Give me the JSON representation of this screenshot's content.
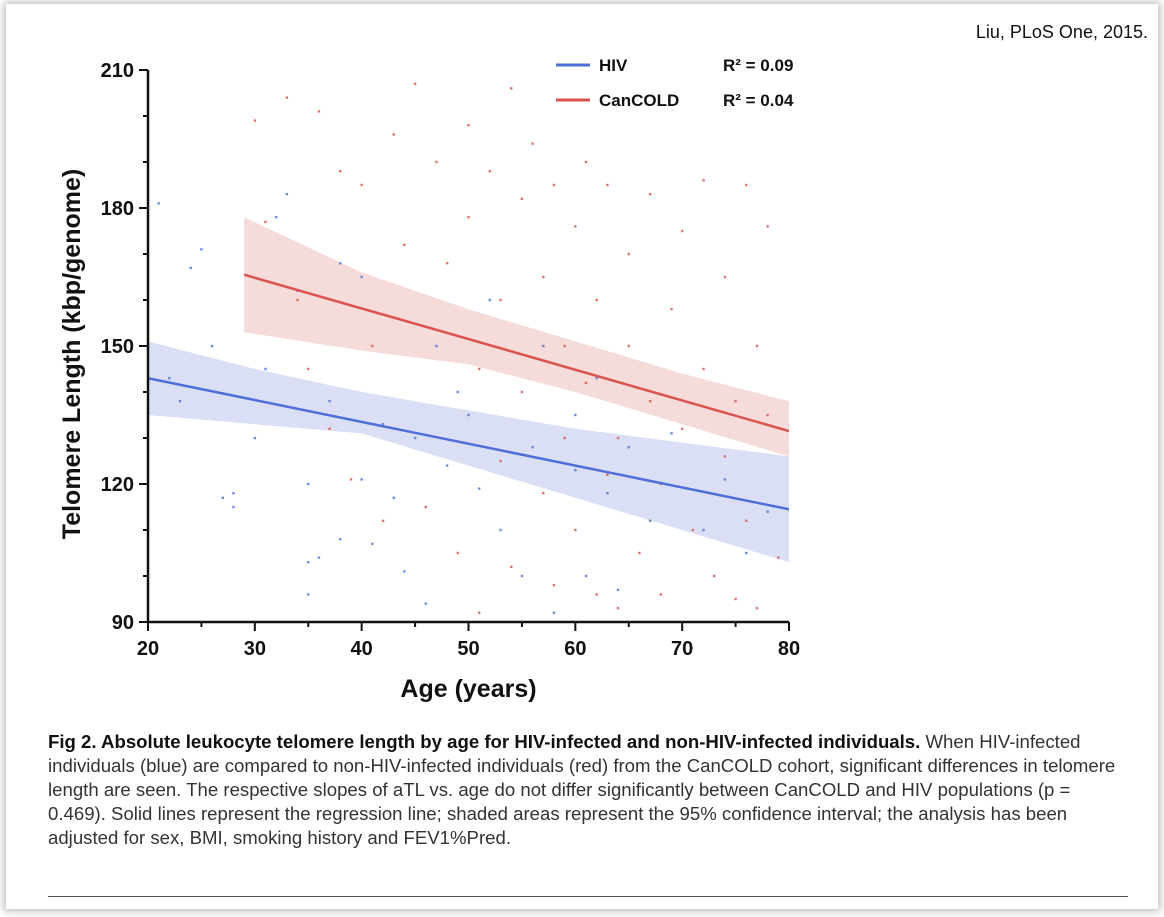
{
  "citation": "Liu, PLoS One, 2015.",
  "chart_data": {
    "type": "scatter",
    "xlabel": "Age (years)",
    "ylabel": "Telomere Length (kbp/genome)",
    "xlim": [
      20,
      80
    ],
    "ylim": [
      90,
      210
    ],
    "xticks": [
      20,
      30,
      40,
      50,
      60,
      70,
      80
    ],
    "yticks": [
      90,
      120,
      150,
      180,
      210
    ],
    "grid": false,
    "legend_position": "top-right",
    "series": [
      {
        "name": "HIV",
        "r2_label": "R² = 0.09",
        "color": "#4f6fd8",
        "band_color": "#cfd4f3",
        "regression": {
          "x": [
            20,
            80
          ],
          "y": [
            143,
            114.5
          ]
        },
        "ci_upper": {
          "x": [
            20,
            30,
            40,
            50,
            60,
            70,
            80
          ],
          "y": [
            151,
            145,
            140,
            136,
            132,
            129,
            126
          ]
        },
        "ci_lower": {
          "x": [
            20,
            30,
            40,
            50,
            60,
            70,
            80
          ],
          "y": [
            135,
            133,
            131,
            124,
            117,
            110,
            103
          ]
        },
        "points": [
          [
            21,
            181
          ],
          [
            22,
            143
          ],
          [
            23,
            138
          ],
          [
            24,
            167
          ],
          [
            25,
            171
          ],
          [
            26,
            150
          ],
          [
            27,
            117
          ],
          [
            28,
            115
          ],
          [
            28,
            118
          ],
          [
            30,
            130
          ],
          [
            31,
            145
          ],
          [
            32,
            178
          ],
          [
            33,
            183
          ],
          [
            34,
            162
          ],
          [
            35,
            103
          ],
          [
            35,
            120
          ],
          [
            35,
            96
          ],
          [
            36,
            104
          ],
          [
            37,
            138
          ],
          [
            38,
            168
          ],
          [
            38,
            108
          ],
          [
            40,
            165
          ],
          [
            40,
            121
          ],
          [
            41,
            107
          ],
          [
            42,
            133
          ],
          [
            43,
            117
          ],
          [
            44,
            101
          ],
          [
            45,
            130
          ],
          [
            46,
            94
          ],
          [
            47,
            150
          ],
          [
            48,
            124
          ],
          [
            49,
            140
          ],
          [
            50,
            135
          ],
          [
            51,
            119
          ],
          [
            52,
            160
          ],
          [
            53,
            110
          ],
          [
            55,
            100
          ],
          [
            56,
            128
          ],
          [
            57,
            150
          ],
          [
            58,
            92
          ],
          [
            60,
            135
          ],
          [
            60,
            123
          ],
          [
            61,
            100
          ],
          [
            62,
            143
          ],
          [
            63,
            118
          ],
          [
            64,
            97
          ],
          [
            65,
            128
          ],
          [
            67,
            112
          ],
          [
            69,
            131
          ],
          [
            72,
            110
          ],
          [
            74,
            121
          ],
          [
            76,
            105
          ],
          [
            78,
            114
          ]
        ]
      },
      {
        "name": "CanCOLD",
        "r2_label": "R² = 0.04",
        "color": "#d9534f",
        "band_color": "#f3cfcf",
        "regression": {
          "x": [
            29,
            80
          ],
          "y": [
            165.5,
            131.5
          ]
        },
        "ci_upper": {
          "x": [
            29,
            40,
            50,
            60,
            70,
            80
          ],
          "y": [
            178,
            166,
            158,
            151,
            144,
            138
          ]
        },
        "ci_lower": {
          "x": [
            29,
            40,
            50,
            60,
            70,
            80
          ],
          "y": [
            153,
            149,
            146,
            140,
            133,
            126
          ]
        },
        "points": [
          [
            30,
            199
          ],
          [
            31,
            177
          ],
          [
            33,
            204
          ],
          [
            34,
            160
          ],
          [
            35,
            145
          ],
          [
            36,
            201
          ],
          [
            37,
            132
          ],
          [
            38,
            188
          ],
          [
            39,
            121
          ],
          [
            40,
            185
          ],
          [
            41,
            150
          ],
          [
            42,
            112
          ],
          [
            43,
            196
          ],
          [
            44,
            172
          ],
          [
            45,
            207
          ],
          [
            46,
            115
          ],
          [
            47,
            190
          ],
          [
            48,
            168
          ],
          [
            49,
            105
          ],
          [
            50,
            198
          ],
          [
            50,
            178
          ],
          [
            51,
            145
          ],
          [
            51,
            92
          ],
          [
            52,
            188
          ],
          [
            53,
            160
          ],
          [
            53,
            125
          ],
          [
            54,
            206
          ],
          [
            54,
            102
          ],
          [
            55,
            182
          ],
          [
            55,
            140
          ],
          [
            56,
            194
          ],
          [
            57,
            165
          ],
          [
            57,
            118
          ],
          [
            58,
            185
          ],
          [
            58,
            98
          ],
          [
            59,
            150
          ],
          [
            59,
            130
          ],
          [
            60,
            176
          ],
          [
            60,
            110
          ],
          [
            61,
            190
          ],
          [
            61,
            142
          ],
          [
            62,
            96
          ],
          [
            62,
            160
          ],
          [
            63,
            185
          ],
          [
            63,
            122
          ],
          [
            64,
            130
          ],
          [
            64,
            93
          ],
          [
            65,
            170
          ],
          [
            65,
            150
          ],
          [
            66,
            105
          ],
          [
            67,
            138
          ],
          [
            67,
            183
          ],
          [
            68,
            120
          ],
          [
            68,
            96
          ],
          [
            69,
            158
          ],
          [
            70,
            175
          ],
          [
            70,
            132
          ],
          [
            71,
            110
          ],
          [
            72,
            186
          ],
          [
            72,
            145
          ],
          [
            73,
            100
          ],
          [
            74,
            165
          ],
          [
            74,
            126
          ],
          [
            75,
            138
          ],
          [
            75,
            95
          ],
          [
            76,
            185
          ],
          [
            76,
            112
          ],
          [
            77,
            150
          ],
          [
            77,
            93
          ],
          [
            78,
            176
          ],
          [
            78,
            135
          ],
          [
            79,
            104
          ]
        ]
      }
    ]
  },
  "caption": {
    "title": "Fig 2. Absolute leukocyte telomere length by age for HIV-infected and non-HIV-infected individuals.",
    "body": "When HIV-infected individuals (blue) are compared to non-HIV-infected individuals (red) from the CanCOLD cohort, significant differences in telomere length are seen. The respective slopes of aTL vs. age do not differ significantly between CanCOLD and HIV populations (p = 0.469). Solid lines represent the regression line; shaded areas represent the 95% confidence interval; the analysis has been adjusted for sex, BMI, smoking history and FEV1%Pred."
  }
}
